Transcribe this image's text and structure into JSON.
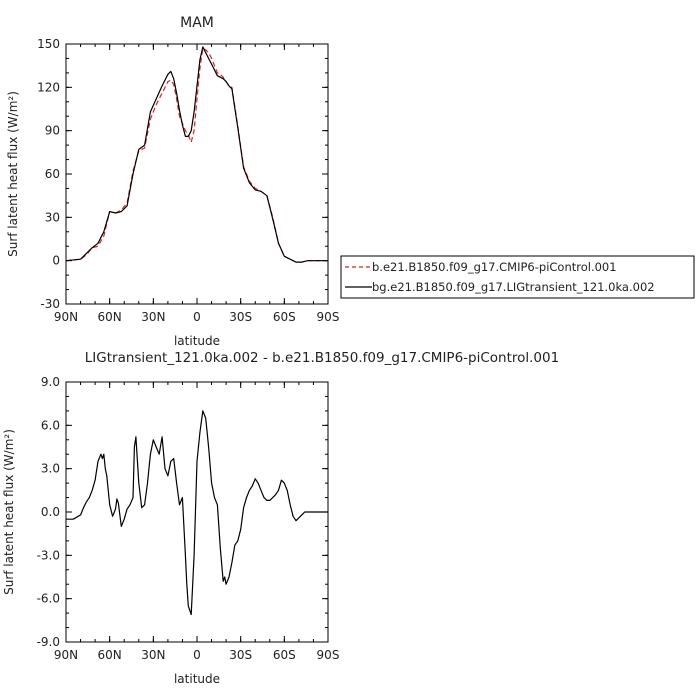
{
  "chart_data": [
    {
      "type": "line",
      "title": "MAM",
      "xlabel": "latitude",
      "ylabel": "Surf latent heat flux (W/m²)",
      "xlim": [
        90,
        -90
      ],
      "ylim": [
        -30,
        150
      ],
      "yticks": [
        -30,
        0,
        30,
        60,
        90,
        120,
        150
      ],
      "ytick_labels": [
        "-30",
        "0",
        "30",
        "60",
        "90",
        "120",
        "150"
      ],
      "xticks": [
        90,
        60,
        30,
        0,
        -30,
        -60,
        -90
      ],
      "xtick_labels": [
        "90N",
        "60N",
        "30N",
        "0",
        "30S",
        "60S",
        "90S"
      ],
      "legend": {
        "placement": "right-outside",
        "entries": [
          {
            "label": "b.e21.B1850.f09_g17.CMIP6-piControl.001",
            "color": "#e0201b",
            "style": "dashed"
          },
          {
            "label": "bg.e21.B1850.f09_g17.LIGtransient_121.0ka.002",
            "color": "#000000",
            "style": "solid"
          }
        ]
      },
      "series": [
        {
          "name": "b.e21.B1850.f09_g17.CMIP6-piControl.001",
          "color": "#e0201b",
          "dash": true,
          "x": [
            90,
            80,
            76,
            72,
            68,
            64,
            60,
            56,
            52,
            48,
            44,
            40,
            36,
            32,
            28,
            24,
            20,
            18,
            16,
            14,
            12,
            10,
            8,
            6,
            4,
            2,
            0,
            -2,
            -4,
            -6,
            -8,
            -10,
            -12,
            -14,
            -16,
            -18,
            -20,
            -22,
            -24,
            -28,
            -32,
            -36,
            -40,
            -44,
            -48,
            -52,
            -56,
            -60,
            -64,
            -68,
            -72,
            -76,
            -80,
            -84,
            -90
          ],
          "y": [
            0,
            1,
            4,
            9,
            10,
            17,
            34,
            33,
            35,
            40,
            62,
            76,
            78,
            98,
            108,
            116,
            124,
            125,
            122,
            112,
            100,
            95,
            90,
            87,
            82,
            90,
            112,
            133,
            147,
            146,
            144,
            140,
            135,
            130,
            129,
            127,
            124,
            121,
            120,
            93,
            65,
            55,
            50,
            48,
            45,
            30,
            12,
            3,
            1,
            -1,
            -1,
            0,
            0,
            0,
            0
          ]
        },
        {
          "name": "bg.e21.B1850.f09_g17.LIGtransient_121.0ka.002",
          "color": "#000000",
          "dash": false,
          "x": [
            90,
            80,
            76,
            72,
            68,
            64,
            60,
            56,
            52,
            48,
            44,
            40,
            36,
            32,
            28,
            24,
            20,
            18,
            16,
            14,
            12,
            10,
            8,
            6,
            4,
            2,
            0,
            -2,
            -4,
            -6,
            -8,
            -10,
            -12,
            -14,
            -16,
            -18,
            -20,
            -22,
            -24,
            -28,
            -32,
            -36,
            -40,
            -44,
            -48,
            -52,
            -56,
            -60,
            -64,
            -68,
            -72,
            -76,
            -80,
            -84,
            -90
          ],
          "y": [
            0,
            1,
            5,
            9,
            12,
            20,
            34,
            33,
            34,
            38,
            60,
            77,
            80,
            103,
            112,
            121,
            129,
            131,
            126,
            116,
            104,
            94,
            86,
            86,
            90,
            103,
            121,
            139,
            148,
            144,
            140,
            136,
            132,
            128,
            127,
            126,
            124,
            121,
            119,
            92,
            64,
            54,
            49,
            48,
            45,
            29,
            12,
            3,
            1,
            -1,
            -1,
            0,
            0,
            0,
            0
          ]
        }
      ]
    },
    {
      "type": "line",
      "title": "LIGtransient_121.0ka.002 - b.e21.B1850.f09_g17.CMIP6-piControl.001",
      "xlabel": "latitude",
      "ylabel": "Surf latent heat flux (W/m²)",
      "xlim": [
        90,
        -90
      ],
      "ylim": [
        -9,
        9
      ],
      "yticks": [
        -9,
        -6,
        -3,
        0,
        3,
        6,
        9
      ],
      "ytick_labels": [
        "-9.0",
        "-6.0",
        "-3.0",
        "0.0",
        "3.0",
        "6.0",
        "9.0"
      ],
      "xticks": [
        90,
        60,
        30,
        0,
        -30,
        -60,
        -90
      ],
      "xtick_labels": [
        "90N",
        "60N",
        "30N",
        "0",
        "30S",
        "60S",
        "90S"
      ],
      "series": [
        {
          "color": "#000000",
          "dash": false,
          "x": [
            90,
            85,
            80,
            78,
            76,
            74,
            72,
            70,
            68,
            66,
            65,
            64,
            63,
            62,
            60,
            58,
            56,
            55,
            54,
            52,
            50,
            48,
            46,
            44,
            43,
            42,
            40,
            38,
            36,
            34,
            32,
            30,
            28,
            26,
            24,
            22,
            20,
            18,
            16,
            14,
            12,
            10,
            8,
            7,
            6,
            4,
            2,
            0,
            -2,
            -4,
            -6,
            -8,
            -10,
            -12,
            -14,
            -16,
            -18,
            -19,
            -20,
            -22,
            -24,
            -26,
            -28,
            -30,
            -32,
            -34,
            -36,
            -38,
            -40,
            -42,
            -44,
            -46,
            -48,
            -50,
            -52,
            -54,
            -56,
            -58,
            -60,
            -62,
            -64,
            -66,
            -68,
            -70,
            -72,
            -74,
            -76,
            -78,
            -80,
            -85,
            -90
          ],
          "y": [
            -0.5,
            -0.5,
            -0.2,
            0.3,
            0.7,
            1.0,
            1.5,
            2.2,
            3.5,
            4.0,
            3.7,
            4.0,
            3.0,
            2.5,
            0.5,
            -0.3,
            0.2,
            0.9,
            0.6,
            -1.0,
            -0.5,
            0.2,
            0.5,
            1.0,
            4.5,
            5.2,
            2.0,
            0.3,
            0.5,
            2.0,
            4.0,
            5.0,
            4.5,
            4.0,
            5.2,
            3.0,
            2.5,
            3.5,
            3.7,
            2.0,
            0.5,
            1.0,
            -3.0,
            -5.0,
            -6.5,
            -7.1,
            -3.0,
            3.5,
            5.5,
            7.0,
            6.5,
            4.5,
            2.0,
            1.0,
            0.5,
            -2.5,
            -4.8,
            -4.5,
            -5.0,
            -4.5,
            -3.5,
            -2.3,
            -2.0,
            -1.2,
            0.3,
            1.0,
            1.5,
            1.8,
            2.3,
            2.0,
            1.5,
            1.0,
            0.8,
            0.8,
            1.0,
            1.2,
            1.5,
            2.2,
            2.0,
            1.5,
            0.5,
            -0.3,
            -0.6,
            -0.4,
            -0.2,
            0.0,
            0.0,
            0.0,
            0.0,
            0.0,
            0.0
          ]
        }
      ]
    }
  ]
}
